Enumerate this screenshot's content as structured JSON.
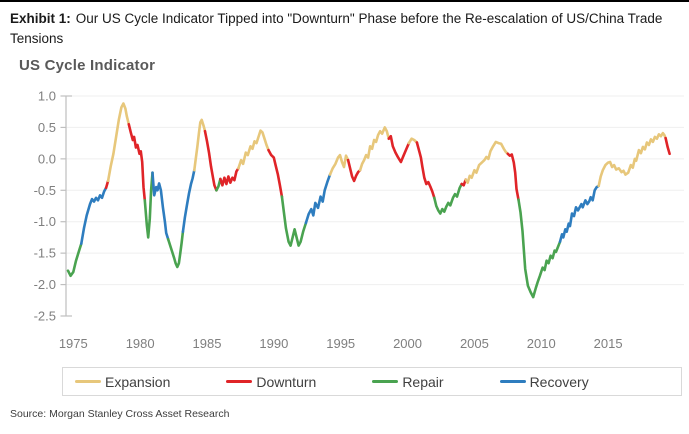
{
  "header": {
    "exhibit_label": "Exhibit 1:",
    "title_text": "Our US Cycle Indicator Tipped into \"Downturn\" Phase before the Re-escalation of US/China Trade Tensions"
  },
  "chart": {
    "title": "US Cycle Indicator"
  },
  "legend": {
    "items": [
      {
        "label": "Expansion",
        "color": "#E7C77B"
      },
      {
        "label": "Downturn",
        "color": "#E02428"
      },
      {
        "label": "Repair",
        "color": "#4AA350"
      },
      {
        "label": "Recovery",
        "color": "#2E7DBF"
      }
    ]
  },
  "source": "Source: Morgan Stanley Cross Asset Research",
  "colors": {
    "grid": "#efefef",
    "axis": "#bfbfbf",
    "tick_label": "#7f7f7f"
  },
  "chart_data": {
    "type": "line",
    "title": "US Cycle Indicator",
    "xlabel": "",
    "ylabel": "",
    "ylim": [
      -2.5,
      1.0
    ],
    "xlim": [
      1974.5,
      2020.5
    ],
    "grid": true,
    "legend_position": "bottom",
    "ytick_labels": [
      "1.0",
      "0.5",
      "0.0",
      "-0.5",
      "-1.0",
      "-1.5",
      "-2.0",
      "-2.5"
    ],
    "xtick_labels": [
      "1975",
      "1980",
      "1985",
      "1990",
      "1995",
      "2000",
      "2005",
      "2010",
      "2015"
    ],
    "phases": {
      "E": {
        "name": "Expansion",
        "color": "#E7C77B"
      },
      "D": {
        "name": "Downturn",
        "color": "#E02428"
      },
      "R": {
        "name": "Repair",
        "color": "#4AA350"
      },
      "C": {
        "name": "Recovery",
        "color": "#2E7DBF"
      }
    },
    "points": [
      [
        1974.6,
        -1.78,
        "R"
      ],
      [
        1974.8,
        -1.86,
        "R"
      ],
      [
        1975.0,
        -1.8,
        "R"
      ],
      [
        1975.2,
        -1.62,
        "R"
      ],
      [
        1975.45,
        -1.45,
        "R"
      ],
      [
        1975.6,
        -1.35,
        "C"
      ],
      [
        1975.8,
        -1.1,
        "C"
      ],
      [
        1976.0,
        -0.9,
        "C"
      ],
      [
        1976.25,
        -0.72,
        "C"
      ],
      [
        1976.4,
        -0.64,
        "C"
      ],
      [
        1976.55,
        -0.68,
        "C"
      ],
      [
        1976.7,
        -0.62,
        "C"
      ],
      [
        1976.85,
        -0.66,
        "C"
      ],
      [
        1977.0,
        -0.58,
        "C"
      ],
      [
        1977.15,
        -0.62,
        "C"
      ],
      [
        1977.3,
        -0.52,
        "C"
      ],
      [
        1977.45,
        -0.46,
        "D"
      ],
      [
        1977.6,
        -0.35,
        "E"
      ],
      [
        1977.8,
        -0.12,
        "E"
      ],
      [
        1978.0,
        0.08,
        "E"
      ],
      [
        1978.2,
        0.35,
        "E"
      ],
      [
        1978.4,
        0.62,
        "E"
      ],
      [
        1978.6,
        0.82,
        "E"
      ],
      [
        1978.75,
        0.88,
        "E"
      ],
      [
        1978.9,
        0.8,
        "E"
      ],
      [
        1979.0,
        0.68,
        "E"
      ],
      [
        1979.15,
        0.55,
        "D"
      ],
      [
        1979.3,
        0.42,
        "D"
      ],
      [
        1979.45,
        0.3,
        "D"
      ],
      [
        1979.55,
        0.35,
        "D"
      ],
      [
        1979.68,
        0.18,
        "D"
      ],
      [
        1979.8,
        0.22,
        "D"
      ],
      [
        1979.95,
        0.08,
        "D"
      ],
      [
        1980.05,
        0.12,
        "D"
      ],
      [
        1980.15,
        -0.05,
        "D"
      ],
      [
        1980.25,
        -0.45,
        "D"
      ],
      [
        1980.35,
        -0.66,
        "R"
      ],
      [
        1980.5,
        -1.05,
        "R"
      ],
      [
        1980.6,
        -1.25,
        "R"
      ],
      [
        1980.72,
        -0.95,
        "R"
      ],
      [
        1980.82,
        -0.5,
        "R"
      ],
      [
        1980.92,
        -0.22,
        "C"
      ],
      [
        1981.05,
        -0.58,
        "C"
      ],
      [
        1981.2,
        -0.45,
        "C"
      ],
      [
        1981.3,
        -0.5,
        "C"
      ],
      [
        1981.42,
        -0.39,
        "C"
      ],
      [
        1981.55,
        -0.5,
        "C"
      ],
      [
        1981.7,
        -0.77,
        "C"
      ],
      [
        1981.85,
        -1.0,
        "C"
      ],
      [
        1981.95,
        -1.18,
        "C"
      ],
      [
        1982.1,
        -1.28,
        "R"
      ],
      [
        1982.25,
        -1.38,
        "R"
      ],
      [
        1982.4,
        -1.48,
        "R"
      ],
      [
        1982.55,
        -1.58,
        "R"
      ],
      [
        1982.65,
        -1.66,
        "R"
      ],
      [
        1982.78,
        -1.72,
        "R"
      ],
      [
        1982.9,
        -1.66,
        "R"
      ],
      [
        1983.0,
        -1.5,
        "R"
      ],
      [
        1983.1,
        -1.34,
        "R"
      ],
      [
        1983.2,
        -1.16,
        "C"
      ],
      [
        1983.35,
        -0.93,
        "C"
      ],
      [
        1983.5,
        -0.74,
        "C"
      ],
      [
        1983.65,
        -0.55,
        "C"
      ],
      [
        1983.8,
        -0.4,
        "C"
      ],
      [
        1983.92,
        -0.31,
        "C"
      ],
      [
        1984.05,
        -0.18,
        "E"
      ],
      [
        1984.15,
        -0.02,
        "E"
      ],
      [
        1984.28,
        0.2,
        "E"
      ],
      [
        1984.4,
        0.42,
        "E"
      ],
      [
        1984.5,
        0.58,
        "E"
      ],
      [
        1984.6,
        0.62,
        "E"
      ],
      [
        1984.75,
        0.52,
        "E"
      ],
      [
        1984.85,
        0.44,
        "D"
      ],
      [
        1985.0,
        0.28,
        "D"
      ],
      [
        1985.15,
        0.1,
        "D"
      ],
      [
        1985.3,
        -0.12,
        "D"
      ],
      [
        1985.45,
        -0.3,
        "D"
      ],
      [
        1985.55,
        -0.42,
        "D"
      ],
      [
        1985.7,
        -0.5,
        "R"
      ],
      [
        1985.85,
        -0.44,
        "R"
      ],
      [
        1986.0,
        -0.32,
        "D"
      ],
      [
        1986.15,
        -0.42,
        "D"
      ],
      [
        1986.3,
        -0.3,
        "D"
      ],
      [
        1986.45,
        -0.4,
        "D"
      ],
      [
        1986.6,
        -0.28,
        "D"
      ],
      [
        1986.75,
        -0.38,
        "D"
      ],
      [
        1986.9,
        -0.3,
        "D"
      ],
      [
        1987.05,
        -0.34,
        "D"
      ],
      [
        1987.2,
        -0.2,
        "D"
      ],
      [
        1987.35,
        -0.15,
        "E"
      ],
      [
        1987.55,
        -0.02,
        "E"
      ],
      [
        1987.7,
        -0.08,
        "E"
      ],
      [
        1987.9,
        0.1,
        "E"
      ],
      [
        1988.05,
        0.06,
        "E"
      ],
      [
        1988.25,
        0.2,
        "E"
      ],
      [
        1988.4,
        0.16,
        "E"
      ],
      [
        1988.55,
        0.28,
        "E"
      ],
      [
        1988.7,
        0.25,
        "E"
      ],
      [
        1988.9,
        0.38,
        "E"
      ],
      [
        1989.0,
        0.45,
        "E"
      ],
      [
        1989.15,
        0.42,
        "E"
      ],
      [
        1989.3,
        0.32,
        "E"
      ],
      [
        1989.45,
        0.22,
        "E"
      ],
      [
        1989.6,
        0.14,
        "D"
      ],
      [
        1989.8,
        0.06,
        "D"
      ],
      [
        1990.0,
        0.02,
        "D"
      ],
      [
        1990.15,
        -0.12,
        "D"
      ],
      [
        1990.3,
        -0.25,
        "D"
      ],
      [
        1990.45,
        -0.42,
        "D"
      ],
      [
        1990.6,
        -0.6,
        "R"
      ],
      [
        1990.75,
        -0.85,
        "R"
      ],
      [
        1990.9,
        -1.1,
        "R"
      ],
      [
        1991.1,
        -1.32,
        "R"
      ],
      [
        1991.25,
        -1.38,
        "R"
      ],
      [
        1991.4,
        -1.25,
        "R"
      ],
      [
        1991.55,
        -1.12,
        "R"
      ],
      [
        1991.7,
        -1.25,
        "R"
      ],
      [
        1991.85,
        -1.38,
        "R"
      ],
      [
        1992.0,
        -1.32,
        "R"
      ],
      [
        1992.2,
        -1.15,
        "R"
      ],
      [
        1992.4,
        -1.02,
        "C"
      ],
      [
        1992.6,
        -0.88,
        "C"
      ],
      [
        1992.8,
        -0.8,
        "C"
      ],
      [
        1992.95,
        -0.9,
        "C"
      ],
      [
        1993.1,
        -0.7,
        "C"
      ],
      [
        1993.3,
        -0.78,
        "C"
      ],
      [
        1993.5,
        -0.6,
        "C"
      ],
      [
        1993.65,
        -0.68,
        "C"
      ],
      [
        1993.8,
        -0.5,
        "C"
      ],
      [
        1994.0,
        -0.37,
        "C"
      ],
      [
        1994.2,
        -0.25,
        "E"
      ],
      [
        1994.4,
        -0.15,
        "E"
      ],
      [
        1994.6,
        -0.08,
        "E"
      ],
      [
        1994.8,
        0.02,
        "E"
      ],
      [
        1994.95,
        0.06,
        "E"
      ],
      [
        1995.1,
        -0.05,
        "E"
      ],
      [
        1995.25,
        -0.13,
        "E"
      ],
      [
        1995.4,
        0.05,
        "E"
      ],
      [
        1995.55,
        -0.02,
        "D"
      ],
      [
        1995.7,
        -0.15,
        "D"
      ],
      [
        1995.85,
        -0.28,
        "D"
      ],
      [
        1996.0,
        -0.35,
        "D"
      ],
      [
        1996.15,
        -0.27,
        "D"
      ],
      [
        1996.3,
        -0.21,
        "D"
      ],
      [
        1996.45,
        -0.18,
        "E"
      ],
      [
        1996.6,
        -0.08,
        "E"
      ],
      [
        1996.75,
        -0.02,
        "E"
      ],
      [
        1996.9,
        0.06,
        "E"
      ],
      [
        1997.05,
        0.02,
        "E"
      ],
      [
        1997.2,
        0.2,
        "E"
      ],
      [
        1997.35,
        0.16,
        "E"
      ],
      [
        1997.5,
        0.3,
        "E"
      ],
      [
        1997.65,
        0.27,
        "E"
      ],
      [
        1997.8,
        0.38,
        "E"
      ],
      [
        1997.95,
        0.44,
        "E"
      ],
      [
        1998.1,
        0.4,
        "E"
      ],
      [
        1998.3,
        0.5,
        "E"
      ],
      [
        1998.45,
        0.44,
        "E"
      ],
      [
        1998.6,
        0.32,
        "D"
      ],
      [
        1998.75,
        0.36,
        "D"
      ],
      [
        1998.9,
        0.2,
        "D"
      ],
      [
        1999.1,
        0.1,
        "D"
      ],
      [
        1999.3,
        0.02,
        "D"
      ],
      [
        1999.5,
        -0.05,
        "D"
      ],
      [
        1999.7,
        0.05,
        "D"
      ],
      [
        1999.9,
        0.15,
        "D"
      ],
      [
        2000.1,
        0.25,
        "E"
      ],
      [
        2000.3,
        0.32,
        "E"
      ],
      [
        2000.5,
        0.3,
        "E"
      ],
      [
        2000.7,
        0.26,
        "D"
      ],
      [
        2000.9,
        0.1,
        "D"
      ],
      [
        2001.0,
        0.02,
        "D"
      ],
      [
        2001.1,
        -0.12,
        "D"
      ],
      [
        2001.25,
        -0.3,
        "D"
      ],
      [
        2001.4,
        -0.4,
        "D"
      ],
      [
        2001.55,
        -0.37,
        "D"
      ],
      [
        2001.7,
        -0.44,
        "D"
      ],
      [
        2001.85,
        -0.52,
        "D"
      ],
      [
        2002.0,
        -0.62,
        "R"
      ],
      [
        2002.15,
        -0.75,
        "R"
      ],
      [
        2002.3,
        -0.82,
        "R"
      ],
      [
        2002.45,
        -0.87,
        "R"
      ],
      [
        2002.6,
        -0.8,
        "R"
      ],
      [
        2002.75,
        -0.84,
        "R"
      ],
      [
        2002.9,
        -0.76,
        "R"
      ],
      [
        2003.05,
        -0.7,
        "R"
      ],
      [
        2003.2,
        -0.74,
        "R"
      ],
      [
        2003.4,
        -0.62,
        "R"
      ],
      [
        2003.55,
        -0.56,
        "R"
      ],
      [
        2003.7,
        -0.6,
        "R"
      ],
      [
        2003.9,
        -0.46,
        "R"
      ],
      [
        2004.05,
        -0.4,
        "D"
      ],
      [
        2004.2,
        -0.42,
        "D"
      ],
      [
        2004.35,
        -0.33,
        "E"
      ],
      [
        2004.5,
        -0.38,
        "E"
      ],
      [
        2004.65,
        -0.27,
        "E"
      ],
      [
        2004.8,
        -0.3,
        "E"
      ],
      [
        2005.0,
        -0.18,
        "E"
      ],
      [
        2005.15,
        -0.22,
        "E"
      ],
      [
        2005.35,
        -0.1,
        "E"
      ],
      [
        2005.55,
        -0.06,
        "E"
      ],
      [
        2005.75,
        -0.02,
        "E"
      ],
      [
        2005.9,
        0.03,
        "E"
      ],
      [
        2006.05,
        0.0,
        "E"
      ],
      [
        2006.2,
        0.12,
        "E"
      ],
      [
        2006.4,
        0.2,
        "E"
      ],
      [
        2006.6,
        0.27,
        "E"
      ],
      [
        2006.8,
        0.25,
        "E"
      ],
      [
        2007.0,
        0.24,
        "E"
      ],
      [
        2007.2,
        0.16,
        "E"
      ],
      [
        2007.35,
        0.11,
        "E"
      ],
      [
        2007.5,
        0.08,
        "D"
      ],
      [
        2007.65,
        0.05,
        "D"
      ],
      [
        2007.8,
        0.07,
        "D"
      ],
      [
        2007.95,
        -0.06,
        "D"
      ],
      [
        2008.05,
        -0.22,
        "D"
      ],
      [
        2008.15,
        -0.48,
        "D"
      ],
      [
        2008.3,
        -0.65,
        "R"
      ],
      [
        2008.45,
        -0.85,
        "R"
      ],
      [
        2008.6,
        -1.15,
        "R"
      ],
      [
        2008.8,
        -1.75,
        "R"
      ],
      [
        2009.0,
        -2.02,
        "R"
      ],
      [
        2009.2,
        -2.12,
        "R"
      ],
      [
        2009.4,
        -2.2,
        "R"
      ],
      [
        2009.6,
        -2.05,
        "R"
      ],
      [
        2009.75,
        -1.95,
        "R"
      ],
      [
        2009.9,
        -1.86,
        "R"
      ],
      [
        2010.1,
        -1.73,
        "R"
      ],
      [
        2010.25,
        -1.77,
        "R"
      ],
      [
        2010.4,
        -1.62,
        "R"
      ],
      [
        2010.55,
        -1.66,
        "R"
      ],
      [
        2010.7,
        -1.54,
        "R"
      ],
      [
        2010.85,
        -1.58,
        "R"
      ],
      [
        2011.0,
        -1.46,
        "R"
      ],
      [
        2011.1,
        -1.48,
        "R"
      ],
      [
        2011.25,
        -1.4,
        "R"
      ],
      [
        2011.4,
        -1.32,
        "C"
      ],
      [
        2011.55,
        -1.2,
        "C"
      ],
      [
        2011.65,
        -1.25,
        "C"
      ],
      [
        2011.8,
        -1.12,
        "C"
      ],
      [
        2011.9,
        -1.16,
        "C"
      ],
      [
        2012.05,
        -1.03,
        "C"
      ],
      [
        2012.15,
        -1.07,
        "C"
      ],
      [
        2012.3,
        -0.87,
        "C"
      ],
      [
        2012.45,
        -0.91,
        "C"
      ],
      [
        2012.6,
        -0.77,
        "C"
      ],
      [
        2012.75,
        -0.82,
        "C"
      ],
      [
        2013.0,
        -0.72,
        "C"
      ],
      [
        2013.1,
        -0.77,
        "C"
      ],
      [
        2013.3,
        -0.66,
        "C"
      ],
      [
        2013.45,
        -0.72,
        "C"
      ],
      [
        2013.6,
        -0.67,
        "C"
      ],
      [
        2013.7,
        -0.61,
        "C"
      ],
      [
        2013.85,
        -0.66,
        "C"
      ],
      [
        2014.0,
        -0.5,
        "C"
      ],
      [
        2014.15,
        -0.45,
        "C"
      ],
      [
        2014.3,
        -0.43,
        "E"
      ],
      [
        2014.45,
        -0.28,
        "E"
      ],
      [
        2014.6,
        -0.18,
        "E"
      ],
      [
        2014.8,
        -0.1,
        "E"
      ],
      [
        2015.0,
        -0.06,
        "E"
      ],
      [
        2015.15,
        -0.05,
        "E"
      ],
      [
        2015.3,
        -0.13,
        "E"
      ],
      [
        2015.45,
        -0.1,
        "E"
      ],
      [
        2015.6,
        -0.17,
        "E"
      ],
      [
        2015.8,
        -0.15,
        "E"
      ],
      [
        2016.0,
        -0.21,
        "E"
      ],
      [
        2016.15,
        -0.19,
        "E"
      ],
      [
        2016.3,
        -0.25,
        "E"
      ],
      [
        2016.5,
        -0.22,
        "E"
      ],
      [
        2016.7,
        -0.1,
        "E"
      ],
      [
        2016.85,
        -0.14,
        "E"
      ],
      [
        2017.0,
        0.0,
        "E"
      ],
      [
        2017.1,
        -0.03,
        "E"
      ],
      [
        2017.3,
        0.14,
        "E"
      ],
      [
        2017.45,
        0.09,
        "E"
      ],
      [
        2017.6,
        0.19,
        "E"
      ],
      [
        2017.75,
        0.15,
        "E"
      ],
      [
        2017.9,
        0.26,
        "E"
      ],
      [
        2018.05,
        0.22,
        "E"
      ],
      [
        2018.2,
        0.31,
        "E"
      ],
      [
        2018.35,
        0.27,
        "E"
      ],
      [
        2018.5,
        0.35,
        "E"
      ],
      [
        2018.65,
        0.32,
        "E"
      ],
      [
        2018.8,
        0.39,
        "E"
      ],
      [
        2018.95,
        0.36,
        "E"
      ],
      [
        2019.1,
        0.41,
        "E"
      ],
      [
        2019.2,
        0.38,
        "E"
      ],
      [
        2019.3,
        0.33,
        "D"
      ],
      [
        2019.45,
        0.19,
        "D"
      ],
      [
        2019.6,
        0.08,
        "D"
      ]
    ]
  }
}
